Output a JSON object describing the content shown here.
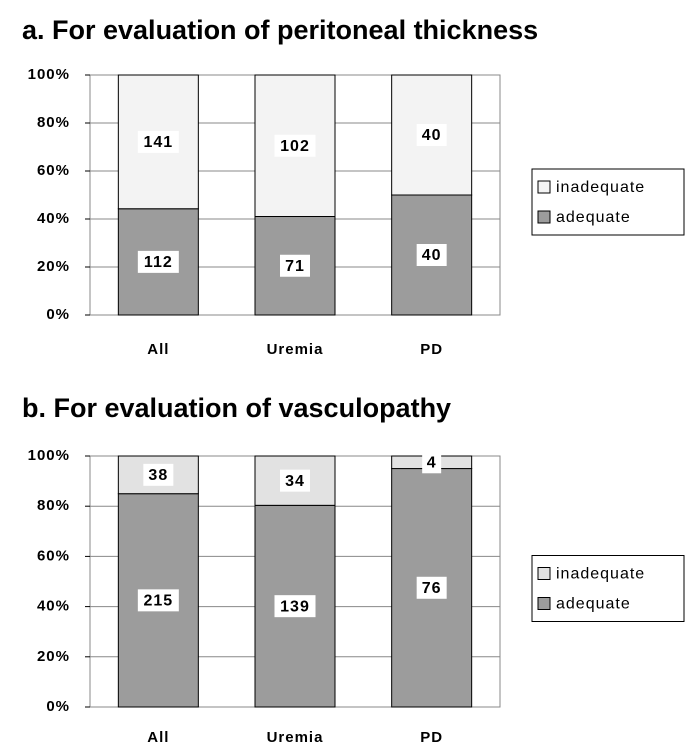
{
  "chart_data": [
    {
      "type": "bar",
      "stack": "percent",
      "title": "a. For evaluation of peritoneal thickness",
      "categories": [
        "All",
        "Uremia",
        "PD"
      ],
      "series": [
        {
          "name": "adequate",
          "color": "#9c9c9c",
          "values": [
            112,
            71,
            40
          ]
        },
        {
          "name": "inadequate",
          "color": "#f3f3f3",
          "values": [
            141,
            102,
            40
          ]
        }
      ],
      "ylim": [
        0,
        100
      ],
      "yticks": [
        {
          "value": 0,
          "label": "0%"
        },
        {
          "value": 20,
          "label": "20%"
        },
        {
          "value": 40,
          "label": "40%"
        },
        {
          "value": 60,
          "label": "60%"
        },
        {
          "value": 80,
          "label": "80%"
        },
        {
          "value": 100,
          "label": "100%"
        }
      ],
      "grid": true,
      "legend": "right"
    },
    {
      "type": "bar",
      "stack": "percent",
      "title": "b. For evaluation of vasculopathy",
      "categories": [
        "All",
        "Uremia",
        "PD"
      ],
      "series": [
        {
          "name": "adequate",
          "color": "#9c9c9c",
          "values": [
            215,
            139,
            76
          ]
        },
        {
          "name": "inadequate",
          "color": "#e2e2e2",
          "values": [
            38,
            34,
            4
          ]
        }
      ],
      "ylim": [
        0,
        100
      ],
      "yticks": [
        {
          "value": 0,
          "label": "0%"
        },
        {
          "value": 20,
          "label": "20%"
        },
        {
          "value": 40,
          "label": "40%"
        },
        {
          "value": 60,
          "label": "60%"
        },
        {
          "value": 80,
          "label": "80%"
        },
        {
          "value": 100,
          "label": "100%"
        }
      ],
      "grid": true,
      "legend": "right"
    }
  ]
}
